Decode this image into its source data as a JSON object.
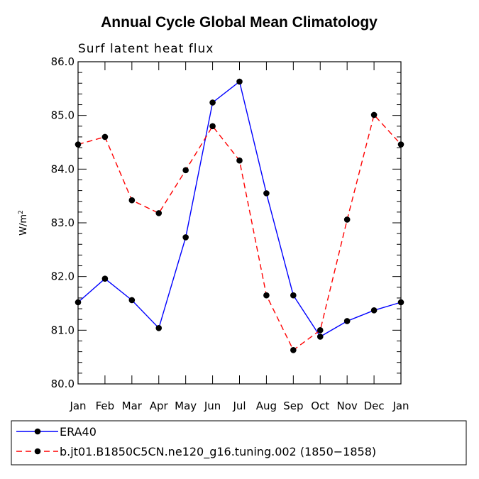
{
  "chart_data": {
    "type": "line",
    "title": "Annual Cycle Global Mean Climatology",
    "subtitle": "Surf latent heat flux",
    "ylabel": "W/m",
    "ylabel_sup": "2",
    "xlabel": "",
    "categories": [
      "Jan",
      "Feb",
      "Mar",
      "Apr",
      "May",
      "Jun",
      "Jul",
      "Aug",
      "Sep",
      "Oct",
      "Nov",
      "Dec",
      "Jan"
    ],
    "ylim": [
      80.0,
      86.0
    ],
    "yticks": [
      "80.0",
      "81.0",
      "82.0",
      "83.0",
      "84.0",
      "85.0",
      "86.0"
    ],
    "grid": false,
    "legend_position": "bottom",
    "series": [
      {
        "name": "ERA40",
        "color": "#0000ff",
        "dash": "solid",
        "values": [
          81.52,
          81.96,
          81.56,
          81.04,
          82.73,
          85.24,
          85.63,
          83.55,
          81.65,
          80.88,
          81.17,
          81.37,
          81.52
        ]
      },
      {
        "name": "b.jt01.B1850C5CN.ne120_g16.tuning.002 (1850−1858)",
        "color": "#ff0000",
        "dash": "dashed",
        "values": [
          84.46,
          84.6,
          83.42,
          83.18,
          83.98,
          84.8,
          84.16,
          81.65,
          80.63,
          81.0,
          83.06,
          85.01,
          84.46
        ]
      }
    ]
  }
}
